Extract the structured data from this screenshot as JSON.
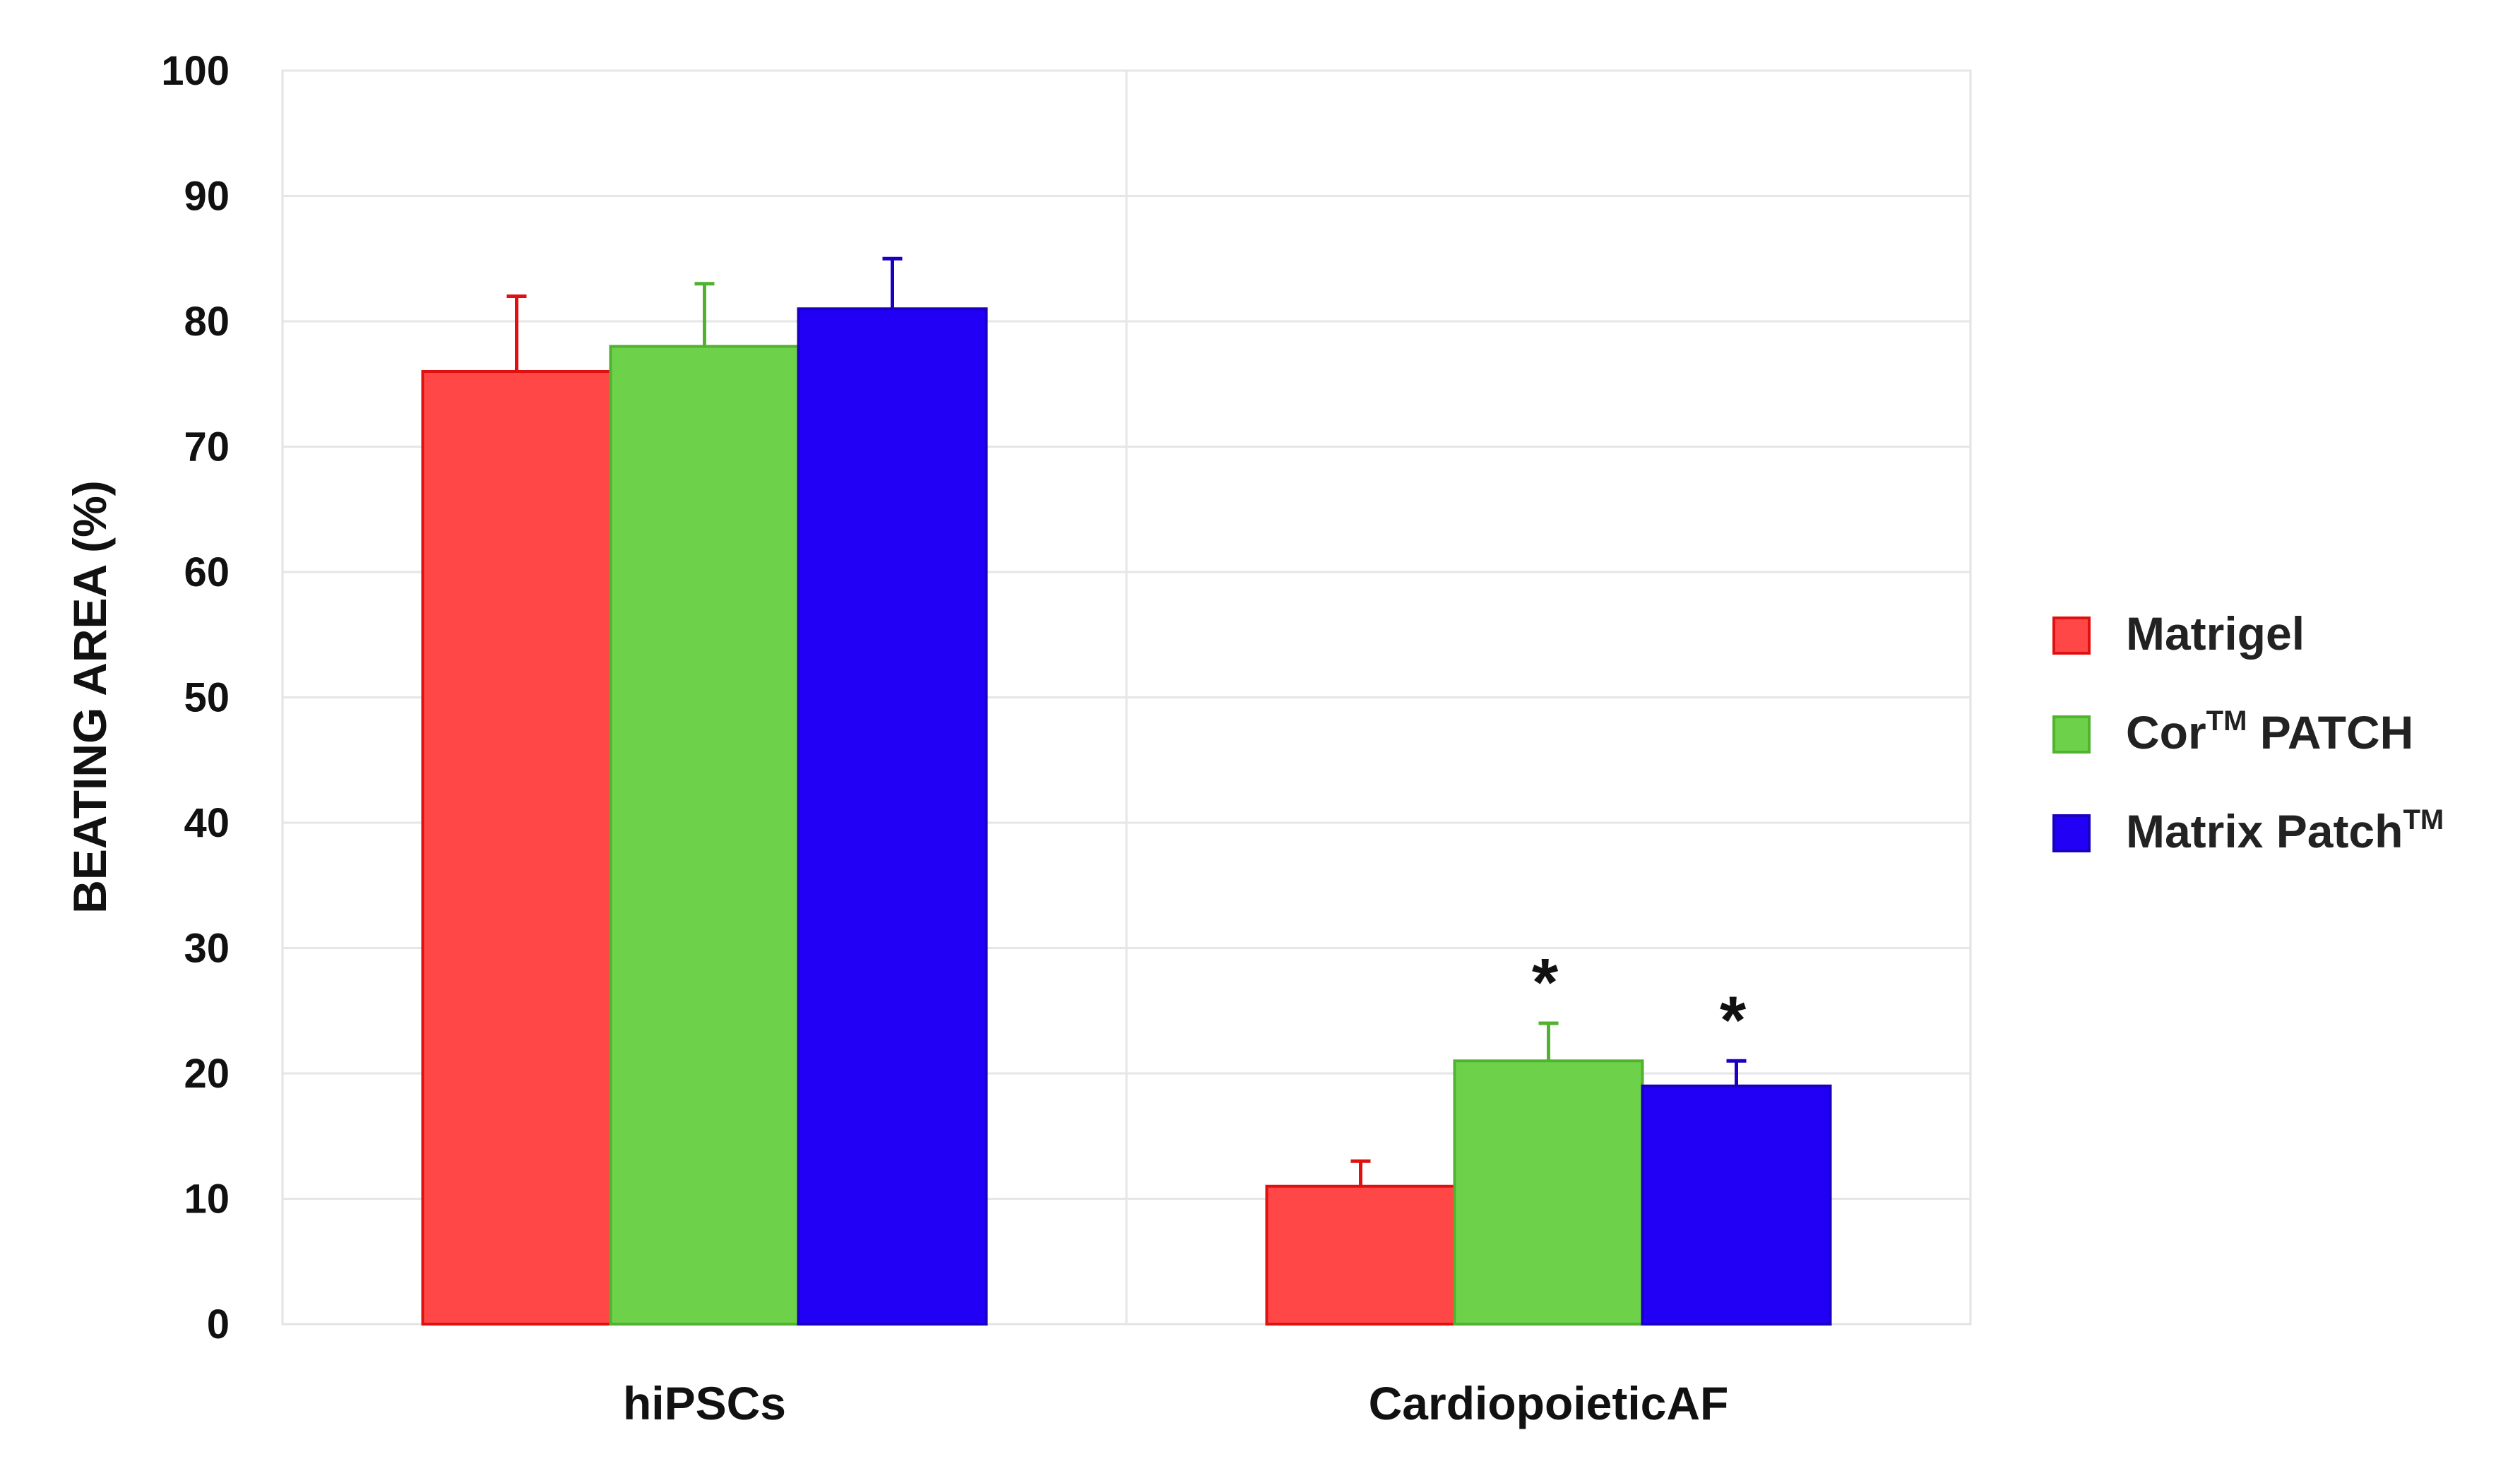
{
  "chart_data": {
    "type": "bar",
    "ylabel": "BEATING AREA (%)",
    "xlabel": "",
    "ylim": [
      0,
      100
    ],
    "yticks": [
      0,
      10,
      20,
      30,
      40,
      50,
      60,
      70,
      80,
      90,
      100
    ],
    "grid": true,
    "categories": [
      "hiPSCs",
      "CardiopoieticAF"
    ],
    "series": [
      {
        "name": "Matrigel",
        "name_sup": "",
        "name_base": "Matrigel",
        "color": "#ff4747",
        "edge": "#e01010",
        "values": [
          76,
          11
        ],
        "errors": [
          6,
          2
        ],
        "significance": [
          "",
          ""
        ]
      },
      {
        "name": "CorTM PATCH",
        "name_base": "Cor",
        "name_sup": "TM",
        "name_tail": " PATCH",
        "color": "#6ed14a",
        "edge": "#50b22e",
        "values": [
          78,
          21
        ],
        "errors": [
          5,
          3
        ],
        "significance": [
          "",
          "*"
        ]
      },
      {
        "name": "Matrix PatchTM",
        "name_base": "Matrix Patch",
        "name_sup": "TM",
        "name_tail": "",
        "color": "#2200f5",
        "edge": "#1a00c0",
        "values": [
          81,
          19
        ],
        "errors": [
          4,
          2
        ],
        "significance": [
          "",
          "*"
        ]
      }
    ],
    "legend_position": "right"
  }
}
